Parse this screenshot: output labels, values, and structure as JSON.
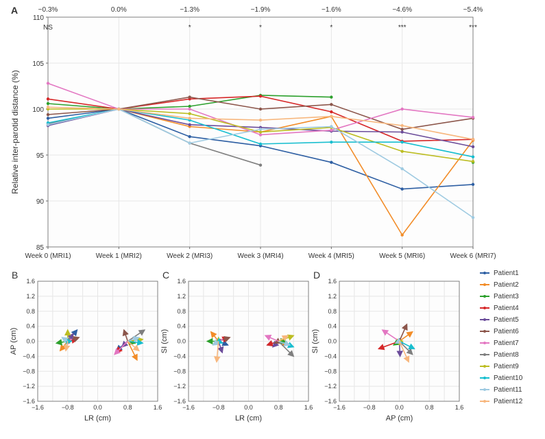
{
  "patients": [
    {
      "label": "Patient1",
      "color": "#2e5fa3"
    },
    {
      "label": "Patient2",
      "color": "#f28c28"
    },
    {
      "label": "Patient3",
      "color": "#2ca02c"
    },
    {
      "label": "Patient4",
      "color": "#d62728"
    },
    {
      "label": "Patient5",
      "color": "#6b4c9a"
    },
    {
      "label": "Patient6",
      "color": "#8c564b"
    },
    {
      "label": "Patient7",
      "color": "#e377c2"
    },
    {
      "label": "Patient8",
      "color": "#7f7f7f"
    },
    {
      "label": "Patient9",
      "color": "#bcbd22"
    },
    {
      "label": "Patient10",
      "color": "#17becf"
    },
    {
      "label": "Patient11",
      "color": "#9ecae1"
    },
    {
      "label": "Patient12",
      "color": "#f7b77e"
    }
  ],
  "panelA": {
    "letter": "A",
    "ylabel": "Relative inter-parotid distance (%)",
    "ylim": [
      85,
      110
    ],
    "ytick_step": 5,
    "x_categories": [
      "Week 0 (MRI1)",
      "Week 1 (MRI2)",
      "Week 2 (MRI3)",
      "Week 3 (MRI4)",
      "Week 4 (MRI5)",
      "Week 5 (MRI6)",
      "Week 6 (MRI7)"
    ],
    "top_annots": [
      "−0.3%",
      "0.0%",
      "−1.3%",
      "−1.9%",
      "−1.6%",
      "−4.6%",
      "−5.4%"
    ],
    "sig_annots": [
      "NS",
      "",
      "*",
      "*",
      "*",
      "***",
      "***"
    ],
    "series": [
      [
        99.0,
        100,
        97.0,
        96.0,
        94.2,
        91.3,
        91.8
      ],
      [
        98.3,
        100,
        98.1,
        97.5,
        99.2,
        86.3,
        96.6
      ],
      [
        100.6,
        100,
        100.3,
        101.5,
        101.3,
        null,
        94.2
      ],
      [
        101.1,
        100,
        101.1,
        101.4,
        99.7,
        96.5,
        96.7
      ],
      [
        98.2,
        100,
        98.3,
        98.0,
        97.6,
        97.5,
        95.9
      ],
      [
        99.4,
        100,
        101.3,
        100.0,
        100.5,
        97.8,
        99.0
      ],
      [
        102.8,
        100,
        100.0,
        97.2,
        97.7,
        100.0,
        99.1
      ],
      [
        98.4,
        100,
        96.3,
        93.9,
        null,
        null,
        null
      ],
      [
        100.0,
        100,
        99.5,
        97.5,
        98.0,
        95.4,
        94.3
      ],
      [
        98.5,
        100,
        98.8,
        96.2,
        96.4,
        96.4,
        94.8
      ],
      [
        98.3,
        100,
        96.3,
        97.8,
        98.1,
        93.5,
        88.2
      ],
      [
        100.2,
        100,
        99.0,
        98.8,
        99.2,
        98.2,
        96.7
      ]
    ],
    "grid_color": "#e6e6e6",
    "border_color": "#666666",
    "fontsize_axis": 12,
    "fontsize_tick": 10,
    "fontsize_letter": 14
  },
  "vectorPanels": [
    {
      "letter": "B",
      "xlabel": "LR (cm)",
      "ylabel": "AP (cm)",
      "xlim": [
        -1.6,
        1.6
      ],
      "ylim": [
        -1.6,
        1.6
      ],
      "tick_step": 0.4,
      "origins": [
        [
          -0.8,
          0
        ],
        [
          0.8,
          0
        ]
      ],
      "vectors": [
        [
          {
            "dx": 0.25,
            "dy": 0.3
          },
          {
            "dx": -0.3,
            "dy": -0.25
          }
        ],
        [
          {
            "dx": -0.2,
            "dy": -0.25
          },
          {
            "dx": 0.25,
            "dy": -0.5
          }
        ],
        [
          {
            "dx": -0.3,
            "dy": -0.05
          },
          {
            "dx": 0.2,
            "dy": -0.05
          }
        ],
        [
          {
            "dx": 0.25,
            "dy": 0.05
          },
          {
            "dx": -0.3,
            "dy": -0.3
          }
        ],
        [
          {
            "dx": 0.15,
            "dy": 0.2
          },
          {
            "dx": -0.15,
            "dy": -0.15
          }
        ],
        [
          {
            "dx": 0.3,
            "dy": 0.1
          },
          {
            "dx": -0.1,
            "dy": 0.3
          }
        ],
        [
          {
            "dx": 0.1,
            "dy": 0.05
          },
          {
            "dx": -0.35,
            "dy": -0.35
          }
        ],
        [
          {
            "dx": 0.05,
            "dy": 0.1
          },
          {
            "dx": 0.45,
            "dy": 0.3
          }
        ],
        [
          {
            "dx": 0.0,
            "dy": 0.3
          },
          {
            "dx": 0.4,
            "dy": 0.05
          }
        ],
        [
          {
            "dx": 0.1,
            "dy": 0.0
          },
          {
            "dx": 0.4,
            "dy": -0.05
          }
        ],
        [
          {
            "dx": -0.15,
            "dy": 0.1
          },
          {
            "dx": 0.3,
            "dy": 0.1
          }
        ],
        [
          {
            "dx": -0.05,
            "dy": -0.25
          },
          {
            "dx": 0.3,
            "dy": -0.25
          }
        ]
      ]
    },
    {
      "letter": "C",
      "xlabel": "LR (cm)",
      "ylabel": "SI (cm)",
      "xlim": [
        -1.6,
        1.6
      ],
      "ylim": [
        -1.6,
        1.6
      ],
      "tick_step": 0.4,
      "origins": [
        [
          -0.8,
          0
        ],
        [
          0.8,
          0
        ]
      ],
      "vectors": [
        [
          {
            "dx": 0.25,
            "dy": -0.1
          },
          {
            "dx": -0.3,
            "dy": -0.1
          }
        ],
        [
          {
            "dx": -0.2,
            "dy": 0.25
          },
          {
            "dx": 0.25,
            "dy": -0.1
          }
        ],
        [
          {
            "dx": -0.3,
            "dy": 0.0
          },
          {
            "dx": 0.2,
            "dy": 0.0
          }
        ],
        [
          {
            "dx": 0.25,
            "dy": 0.1
          },
          {
            "dx": -0.3,
            "dy": -0.1
          }
        ],
        [
          {
            "dx": 0.1,
            "dy": -0.3
          },
          {
            "dx": -0.15,
            "dy": -0.15
          }
        ],
        [
          {
            "dx": 0.3,
            "dy": 0.1
          },
          {
            "dx": -0.1,
            "dy": -0.05
          }
        ],
        [
          {
            "dx": 0.1,
            "dy": 0.05
          },
          {
            "dx": -0.35,
            "dy": 0.15
          }
        ],
        [
          {
            "dx": 0.05,
            "dy": 0.05
          },
          {
            "dx": 0.4,
            "dy": -0.4
          }
        ],
        [
          {
            "dx": 0.0,
            "dy": 0.1
          },
          {
            "dx": 0.4,
            "dy": 0.15
          }
        ],
        [
          {
            "dx": 0.1,
            "dy": -0.05
          },
          {
            "dx": 0.4,
            "dy": -0.15
          }
        ],
        [
          {
            "dx": -0.15,
            "dy": -0.1
          },
          {
            "dx": 0.3,
            "dy": -0.1
          }
        ],
        [
          {
            "dx": -0.05,
            "dy": -0.55
          },
          {
            "dx": 0.25,
            "dy": 0.15
          }
        ]
      ]
    },
    {
      "letter": "D",
      "xlabel": "AP (cm)",
      "ylabel": "SI (cm)",
      "xlim": [
        -1.6,
        1.6
      ],
      "ylim": [
        -1.6,
        1.6
      ],
      "tick_step": 0.4,
      "origins": [
        [
          0,
          0
        ]
      ],
      "vectors": [
        [
          {
            "dx": 0.1,
            "dy": -0.05
          }
        ],
        [
          {
            "dx": 0.35,
            "dy": 0.25
          }
        ],
        [
          {
            "dx": -0.15,
            "dy": -0.1
          }
        ],
        [
          {
            "dx": -0.55,
            "dy": -0.2
          }
        ],
        [
          {
            "dx": 0.02,
            "dy": -0.4
          }
        ],
        [
          {
            "dx": 0.2,
            "dy": 0.45
          }
        ],
        [
          {
            "dx": -0.45,
            "dy": 0.3
          }
        ],
        [
          {
            "dx": 0.35,
            "dy": -0.35
          }
        ],
        [
          {
            "dx": -0.05,
            "dy": 0.05
          }
        ],
        [
          {
            "dx": 0.4,
            "dy": -0.2
          }
        ],
        [
          {
            "dx": -0.1,
            "dy": -0.05
          }
        ],
        [
          {
            "dx": 0.25,
            "dy": -0.55
          }
        ]
      ]
    }
  ],
  "legend": {
    "fontsize": 10,
    "swatch": 14
  }
}
